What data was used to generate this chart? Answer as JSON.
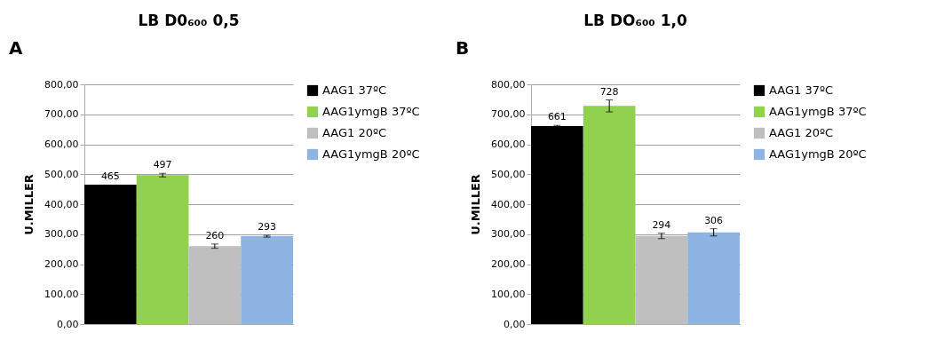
{
  "chart_data": [
    {
      "type": "bar",
      "title": "LB D0₆₀₀ 0,5",
      "ylabel": "U.MILLER",
      "annotations": [
        "A"
      ],
      "categories": [
        null
      ],
      "data_labels": true,
      "grid": "y",
      "legend": "right",
      "tick_labels": "y",
      "ylim": [
        0,
        800
      ],
      "yticks": [
        {
          "value": 0,
          "label": "0,00"
        },
        {
          "value": 100,
          "label": "100,00"
        },
        {
          "value": 200,
          "label": "200,00"
        },
        {
          "value": 300,
          "label": "300,00"
        },
        {
          "value": 400,
          "label": "400,00"
        },
        {
          "value": 500,
          "label": "500,00"
        },
        {
          "value": 600,
          "label": "600,00"
        },
        {
          "value": 700,
          "label": "700,00"
        },
        {
          "value": 800,
          "label": "800,00"
        }
      ],
      "series": [
        {
          "name": "AAG1 37ºC",
          "color": "#000000",
          "values": [
            465
          ],
          "errors": [
            null
          ]
        },
        {
          "name": "AAG1ymgB 37ºC",
          "color": "#92d050",
          "values": [
            497
          ],
          "errors": [
            6
          ]
        },
        {
          "name": "AAG1 20ºC",
          "color": "#bfbfbf",
          "values": [
            260
          ],
          "errors": [
            7
          ]
        },
        {
          "name": "AAG1ymgB 20ºC",
          "color": "#8eb4e3",
          "values": [
            293
          ],
          "errors": [
            3
          ]
        }
      ]
    },
    {
      "type": "bar",
      "title": "LB DO₆₀₀ 1,0",
      "ylabel": "U.MILLER",
      "annotations": [
        "B"
      ],
      "categories": [
        null
      ],
      "data_labels": true,
      "grid": "y",
      "legend": "right",
      "tick_labels": "y",
      "ylim": [
        0,
        800
      ],
      "yticks": [
        {
          "value": 0,
          "label": "0,00"
        },
        {
          "value": 100,
          "label": "100,00"
        },
        {
          "value": 200,
          "label": "200,00"
        },
        {
          "value": 300,
          "label": "300,00"
        },
        {
          "value": 400,
          "label": "400,00"
        },
        {
          "value": 500,
          "label": "500,00"
        },
        {
          "value": 600,
          "label": "600,00"
        },
        {
          "value": 700,
          "label": "700,00"
        },
        {
          "value": 800,
          "label": "800,00"
        }
      ],
      "series": [
        {
          "name": "AAG1 37ºC",
          "color": "#000000",
          "values": [
            661
          ],
          "errors": [
            2
          ]
        },
        {
          "name": "AAG1ymgB 37ºC",
          "color": "#92d050",
          "values": [
            728
          ],
          "errors": [
            20
          ]
        },
        {
          "name": "AAG1 20ºC",
          "color": "#bfbfbf",
          "values": [
            294
          ],
          "errors": [
            9
          ]
        },
        {
          "name": "AAG1ymgB 20ºC",
          "color": "#8eb4e3",
          "values": [
            306
          ],
          "errors": [
            12
          ]
        }
      ]
    }
  ]
}
